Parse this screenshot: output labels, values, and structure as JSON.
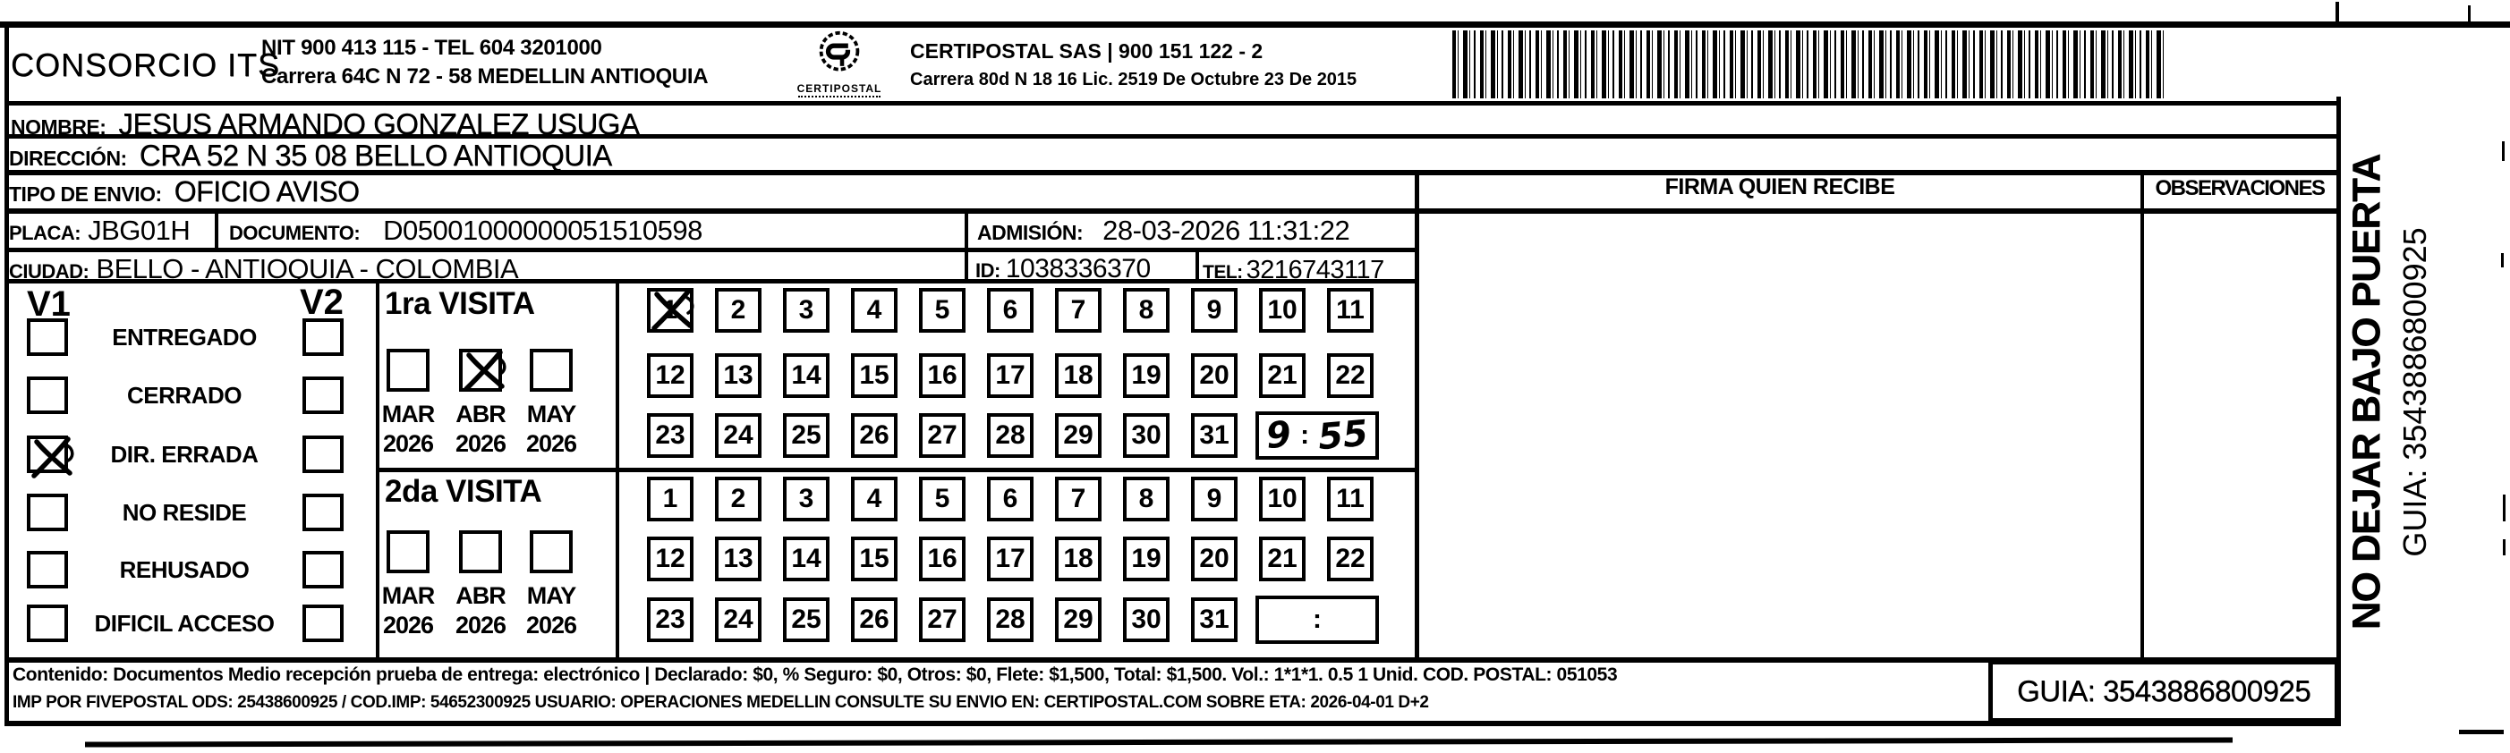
{
  "header": {
    "consorcio": "CONSORCIO ITS",
    "nit_line": "NIT 900 413 115 - TEL 604 3201000",
    "address_line": "Carrera 64C N 72 - 58 MEDELLIN ANTIOQUIA",
    "logo_text": "CERTIPOSTAL",
    "certipostal_line": "CERTIPOSTAL SAS | 900 151 122 - 2",
    "certipostal_address": "Carrera 80d N 18 16  Lic. 2519 De Octubre 23 De 2015"
  },
  "recipient": {
    "nombre_label": "NOMBRE:",
    "nombre": "JESUS ARMANDO GONZALEZ USUGA",
    "direccion_label": "DIRECCIÓN:",
    "direccion": "CRA 52 N 35 08 BELLO ANTIOQUIA",
    "tipo_label": "TIPO DE ENVIO:",
    "tipo": "OFICIO AVISO"
  },
  "shipment": {
    "placa_label": "PLACA:",
    "placa": "JBG01H",
    "documento_label": "DOCUMENTO:",
    "documento": "D05001000000051510598",
    "admision_label": "ADMISIÓN:",
    "admision": "28-03-2026 11:31:22",
    "ciudad_label": "CIUDAD:",
    "ciudad": "BELLO - ANTIOQUIA - COLOMBIA",
    "id_label": "ID:",
    "id": "1038336370",
    "tel_label": "TEL:",
    "tel": "3216743117"
  },
  "status": {
    "v1_label": "V1",
    "v2_label": "V2",
    "options": [
      {
        "label": "ENTREGADO",
        "v1_checked": false,
        "v2_checked": false
      },
      {
        "label": "CERRADO",
        "v1_checked": false,
        "v2_checked": false
      },
      {
        "label": "DIR. ERRADA",
        "v1_checked": true,
        "v2_checked": false
      },
      {
        "label": "NO RESIDE",
        "v1_checked": false,
        "v2_checked": false
      },
      {
        "label": "REHUSADO",
        "v1_checked": false,
        "v2_checked": false
      },
      {
        "label": "DIFICIL ACCESO",
        "v1_checked": false,
        "v2_checked": false
      }
    ]
  },
  "visits": [
    {
      "title": "1ra VISITA",
      "months": [
        {
          "label": "MAR",
          "year": "2026",
          "checked": false
        },
        {
          "label": "ABR",
          "year": "2026",
          "checked": true
        },
        {
          "label": "MAY",
          "year": "2026",
          "checked": false
        }
      ],
      "day_rows": [
        [
          "1",
          "2",
          "3",
          "4",
          "5",
          "6",
          "7",
          "8",
          "9",
          "10",
          "11"
        ],
        [
          "12",
          "13",
          "14",
          "15",
          "16",
          "17",
          "18",
          "19",
          "20",
          "21",
          "22"
        ],
        [
          "23",
          "24",
          "25",
          "26",
          "27",
          "28",
          "29",
          "30",
          "31"
        ]
      ],
      "crossed_day": "1",
      "time": {
        "hour": "9",
        "colon": ":",
        "minute": "55"
      }
    },
    {
      "title": "2da VISITA",
      "months": [
        {
          "label": "MAR",
          "year": "2026",
          "checked": false
        },
        {
          "label": "ABR",
          "year": "2026",
          "checked": false
        },
        {
          "label": "MAY",
          "year": "2026",
          "checked": false
        }
      ],
      "day_rows": [
        [
          "1",
          "2",
          "3",
          "4",
          "5",
          "6",
          "7",
          "8",
          "9",
          "10",
          "11"
        ],
        [
          "12",
          "13",
          "14",
          "15",
          "16",
          "17",
          "18",
          "19",
          "20",
          "21",
          "22"
        ],
        [
          "23",
          "24",
          "25",
          "26",
          "27",
          "28",
          "29",
          "30",
          "31"
        ]
      ],
      "crossed_day": null,
      "time": {
        "hour": "",
        "colon": ":",
        "minute": ""
      }
    }
  ],
  "signature": {
    "firma_header": "FIRMA QUIEN RECIBE",
    "observaciones_header": "OBSERVACIONES"
  },
  "side_panel": {
    "warning": "NO DEJAR BAJO PUERTA",
    "guia": "GUIA: 3543886800925"
  },
  "footer": {
    "line1": "Contenido: Documentos Medio recepción prueba de entrega: electrónico | Declarado: $0, % Seguro: $0, Otros: $0, Flete: $1,500, Total: $1,500. Vol.: 1*1*1. 0.5  1 Unid. COD. POSTAL: 051053",
    "line2": "IMP POR FIVEPOSTAL ODS: 25438600925 / COD.IMP: 54652300925 USUARIO: OPERACIONES MEDELLIN CONSULTE SU ENVIO EN: CERTIPOSTAL.COM SOBRE ETA: 2026-04-01 D+2",
    "guia_box": "GUIA: 3543886800925"
  }
}
